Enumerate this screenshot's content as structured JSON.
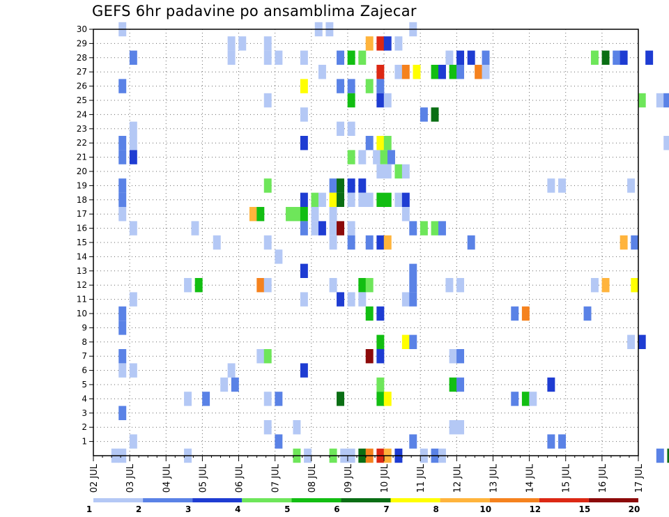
{
  "title": "GEFS 6hr padavine po ansamblima Zajecar",
  "chart_data": {
    "type": "heatmap",
    "title": "GEFS 6hr padavine po ansamblima Zajecar",
    "x_tick_labels": [
      "02 JUL",
      "03 JUL",
      "04 JUL",
      "05 JUL",
      "06 JUL",
      "07 JUL",
      "08 JUL",
      "09 JUL",
      "10 JUL",
      "11 JUL",
      "12 JUL",
      "13 JUL",
      "14 JUL",
      "15 JUL",
      "16 JUL",
      "17 JUL"
    ],
    "x_range": [
      "02 JUL 00Z",
      "17 JUL 00Z"
    ],
    "x_step": "6hr",
    "y_tick_labels": [
      "1",
      "2",
      "3",
      "4",
      "5",
      "6",
      "7",
      "8",
      "9",
      "10",
      "11",
      "12",
      "13",
      "14",
      "15",
      "16",
      "17",
      "18",
      "19",
      "20",
      "21",
      "22",
      "23",
      "24",
      "25",
      "26",
      "27",
      "28",
      "29",
      "30"
    ],
    "y_range": [
      0,
      30
    ],
    "grid": true,
    "legend": {
      "placement": "bottom",
      "labels": [
        "1",
        "2",
        "3",
        "4",
        "5",
        "6",
        "7",
        "8",
        "10",
        "12",
        "15",
        "20"
      ],
      "colors": [
        "#b4c8f5",
        "#5a82e6",
        "#1e3cd2",
        "#6ee65a",
        "#12be12",
        "#0a6e14",
        "#ffff00",
        "#ffb43c",
        "#f5821e",
        "#dc2814",
        "#8c0a0a"
      ]
    },
    "cells": [
      [
        2.8,
        30,
        1
      ],
      [
        8.2,
        30,
        1
      ],
      [
        8.5,
        30,
        1
      ],
      [
        10.8,
        30,
        1
      ],
      [
        5.8,
        29,
        1
      ],
      [
        6.1,
        29,
        1
      ],
      [
        6.8,
        29,
        1
      ],
      [
        9.6,
        29,
        8
      ],
      [
        9.9,
        29,
        10
      ],
      [
        10.1,
        29,
        3
      ],
      [
        10.4,
        29,
        1
      ],
      [
        3.1,
        28,
        2
      ],
      [
        5.8,
        28,
        1
      ],
      [
        6.8,
        28,
        1
      ],
      [
        7.1,
        28,
        1
      ],
      [
        7.8,
        28,
        1
      ],
      [
        8.8,
        28,
        2
      ],
      [
        9.1,
        28,
        5
      ],
      [
        9.4,
        28,
        4
      ],
      [
        11.8,
        28,
        1
      ],
      [
        12.1,
        28,
        3
      ],
      [
        12.4,
        28,
        3
      ],
      [
        12.8,
        28,
        2
      ],
      [
        15.8,
        28,
        4
      ],
      [
        16.1,
        28,
        6
      ],
      [
        16.4,
        28,
        2
      ],
      [
        16.6,
        28,
        3
      ],
      [
        17.3,
        28,
        3
      ],
      [
        8.3,
        27,
        1
      ],
      [
        9.9,
        27,
        10
      ],
      [
        10.4,
        27,
        1
      ],
      [
        10.6,
        27,
        9
      ],
      [
        10.9,
        27,
        7
      ],
      [
        11.4,
        27,
        5
      ],
      [
        11.6,
        27,
        3
      ],
      [
        11.9,
        27,
        5
      ],
      [
        12.1,
        27,
        2
      ],
      [
        12.6,
        27,
        9
      ],
      [
        12.8,
        27,
        1
      ],
      [
        2.8,
        26,
        2
      ],
      [
        7.8,
        26,
        7
      ],
      [
        8.8,
        26,
        2
      ],
      [
        9.1,
        26,
        2
      ],
      [
        9.6,
        26,
        4
      ],
      [
        9.9,
        26,
        2
      ],
      [
        6.8,
        25,
        1
      ],
      [
        9.1,
        25,
        5
      ],
      [
        9.9,
        25,
        3
      ],
      [
        10.1,
        25,
        1
      ],
      [
        17.1,
        25,
        4
      ],
      [
        17.6,
        25,
        1
      ],
      [
        17.8,
        25,
        2
      ],
      [
        7.8,
        24,
        1
      ],
      [
        11.1,
        24,
        2
      ],
      [
        11.4,
        24,
        6
      ],
      [
        3.1,
        23,
        1
      ],
      [
        8.8,
        23,
        1
      ],
      [
        9.1,
        23,
        1
      ],
      [
        2.8,
        22,
        2
      ],
      [
        3.1,
        22,
        1
      ],
      [
        7.8,
        22,
        3
      ],
      [
        9.6,
        22,
        2
      ],
      [
        9.9,
        22,
        7
      ],
      [
        10.1,
        22,
        4
      ],
      [
        17.8,
        22,
        1
      ],
      [
        2.8,
        21,
        2
      ],
      [
        3.1,
        21,
        3
      ],
      [
        9.1,
        21,
        4
      ],
      [
        9.4,
        21,
        1
      ],
      [
        9.8,
        21,
        1
      ],
      [
        10.0,
        21,
        4
      ],
      [
        10.2,
        21,
        2
      ],
      [
        9.9,
        20,
        1
      ],
      [
        10.1,
        20,
        1
      ],
      [
        10.4,
        20,
        4
      ],
      [
        10.6,
        20,
        1
      ],
      [
        2.8,
        19,
        2
      ],
      [
        6.8,
        19,
        4
      ],
      [
        8.6,
        19,
        2
      ],
      [
        8.8,
        19,
        6
      ],
      [
        9.1,
        19,
        3
      ],
      [
        9.4,
        19,
        3
      ],
      [
        14.6,
        19,
        1
      ],
      [
        14.9,
        19,
        1
      ],
      [
        16.8,
        19,
        1
      ],
      [
        2.8,
        18,
        2
      ],
      [
        7.8,
        18,
        3
      ],
      [
        8.1,
        18,
        4
      ],
      [
        8.3,
        18,
        1
      ],
      [
        8.6,
        18,
        7
      ],
      [
        8.8,
        18,
        6
      ],
      [
        9.1,
        18,
        1
      ],
      [
        9.4,
        18,
        1
      ],
      [
        9.6,
        18,
        1
      ],
      [
        9.9,
        18,
        5
      ],
      [
        10.1,
        18,
        5
      ],
      [
        10.4,
        18,
        1
      ],
      [
        10.6,
        18,
        3
      ],
      [
        2.8,
        17,
        1
      ],
      [
        6.4,
        17,
        8
      ],
      [
        6.6,
        17,
        5
      ],
      [
        7.4,
        17,
        4
      ],
      [
        7.6,
        17,
        4
      ],
      [
        7.8,
        17,
        5
      ],
      [
        8.1,
        17,
        1
      ],
      [
        8.6,
        17,
        1
      ],
      [
        10.6,
        17,
        1
      ],
      [
        3.1,
        16,
        1
      ],
      [
        4.8,
        16,
        1
      ],
      [
        7.8,
        16,
        2
      ],
      [
        8.1,
        16,
        1
      ],
      [
        8.3,
        16,
        3
      ],
      [
        8.6,
        16,
        1
      ],
      [
        8.8,
        16,
        11
      ],
      [
        9.1,
        16,
        1
      ],
      [
        10.8,
        16,
        2
      ],
      [
        11.1,
        16,
        4
      ],
      [
        11.4,
        16,
        4
      ],
      [
        11.6,
        16,
        2
      ],
      [
        5.4,
        15,
        1
      ],
      [
        6.8,
        15,
        1
      ],
      [
        8.6,
        15,
        1
      ],
      [
        9.1,
        15,
        2
      ],
      [
        9.6,
        15,
        2
      ],
      [
        9.9,
        15,
        3
      ],
      [
        10.1,
        15,
        8
      ],
      [
        12.4,
        15,
        2
      ],
      [
        16.6,
        15,
        8
      ],
      [
        16.9,
        15,
        2
      ],
      [
        7.1,
        14,
        1
      ],
      [
        7.8,
        13,
        3
      ],
      [
        10.8,
        13,
        2
      ],
      [
        4.6,
        12,
        1
      ],
      [
        4.9,
        12,
        5
      ],
      [
        6.6,
        12,
        9
      ],
      [
        6.8,
        12,
        1
      ],
      [
        8.6,
        12,
        1
      ],
      [
        9.4,
        12,
        5
      ],
      [
        9.6,
        12,
        4
      ],
      [
        10.8,
        12,
        2
      ],
      [
        11.8,
        12,
        1
      ],
      [
        12.1,
        12,
        1
      ],
      [
        15.8,
        12,
        1
      ],
      [
        16.1,
        12,
        8
      ],
      [
        16.9,
        12,
        7
      ],
      [
        3.1,
        11,
        1
      ],
      [
        7.8,
        11,
        1
      ],
      [
        8.8,
        11,
        3
      ],
      [
        9.1,
        11,
        1
      ],
      [
        9.4,
        11,
        1
      ],
      [
        10.6,
        11,
        1
      ],
      [
        10.8,
        11,
        2
      ],
      [
        2.8,
        10,
        2
      ],
      [
        9.6,
        10,
        5
      ],
      [
        9.9,
        10,
        3
      ],
      [
        13.6,
        10,
        2
      ],
      [
        13.9,
        10,
        9
      ],
      [
        15.6,
        10,
        2
      ],
      [
        2.8,
        9,
        2
      ],
      [
        9.9,
        8,
        5
      ],
      [
        10.6,
        8,
        7
      ],
      [
        10.8,
        8,
        2
      ],
      [
        16.8,
        8,
        1
      ],
      [
        17.1,
        8,
        3
      ],
      [
        2.8,
        7,
        2
      ],
      [
        6.6,
        7,
        1
      ],
      [
        6.8,
        7,
        4
      ],
      [
        9.6,
        7,
        11
      ],
      [
        9.9,
        7,
        3
      ],
      [
        11.9,
        7,
        1
      ],
      [
        12.1,
        7,
        2
      ],
      [
        2.8,
        6,
        1
      ],
      [
        3.1,
        6,
        1
      ],
      [
        5.8,
        6,
        1
      ],
      [
        7.8,
        6,
        3
      ],
      [
        5.6,
        5,
        1
      ],
      [
        5.9,
        5,
        2
      ],
      [
        9.9,
        5,
        4
      ],
      [
        11.9,
        5,
        5
      ],
      [
        12.1,
        5,
        2
      ],
      [
        14.6,
        5,
        3
      ],
      [
        4.6,
        4,
        1
      ],
      [
        5.1,
        4,
        2
      ],
      [
        6.8,
        4,
        1
      ],
      [
        7.1,
        4,
        2
      ],
      [
        8.8,
        4,
        6
      ],
      [
        9.9,
        4,
        5
      ],
      [
        10.1,
        4,
        7
      ],
      [
        13.6,
        4,
        2
      ],
      [
        13.9,
        4,
        5
      ],
      [
        14.1,
        4,
        1
      ],
      [
        2.8,
        3,
        2
      ],
      [
        6.8,
        2,
        1
      ],
      [
        7.6,
        2,
        1
      ],
      [
        11.9,
        2,
        1
      ],
      [
        12.1,
        2,
        1
      ],
      [
        3.1,
        1,
        1
      ],
      [
        7.1,
        1,
        2
      ],
      [
        10.8,
        1,
        2
      ],
      [
        14.6,
        1,
        2
      ],
      [
        14.9,
        1,
        2
      ],
      [
        2.6,
        0,
        1
      ],
      [
        2.8,
        0,
        1
      ],
      [
        4.6,
        0,
        1
      ],
      [
        7.6,
        0,
        4
      ],
      [
        7.9,
        0,
        1
      ],
      [
        8.6,
        0,
        4
      ],
      [
        8.9,
        0,
        1
      ],
      [
        9.1,
        0,
        1
      ],
      [
        9.4,
        0,
        6
      ],
      [
        9.6,
        0,
        9
      ],
      [
        9.9,
        0,
        10
      ],
      [
        10.1,
        0,
        8
      ],
      [
        10.4,
        0,
        3
      ],
      [
        11.1,
        0,
        1
      ],
      [
        11.4,
        0,
        2
      ],
      [
        11.6,
        0,
        1
      ],
      [
        17.6,
        0,
        2
      ],
      [
        17.9,
        0,
        6
      ]
    ]
  }
}
